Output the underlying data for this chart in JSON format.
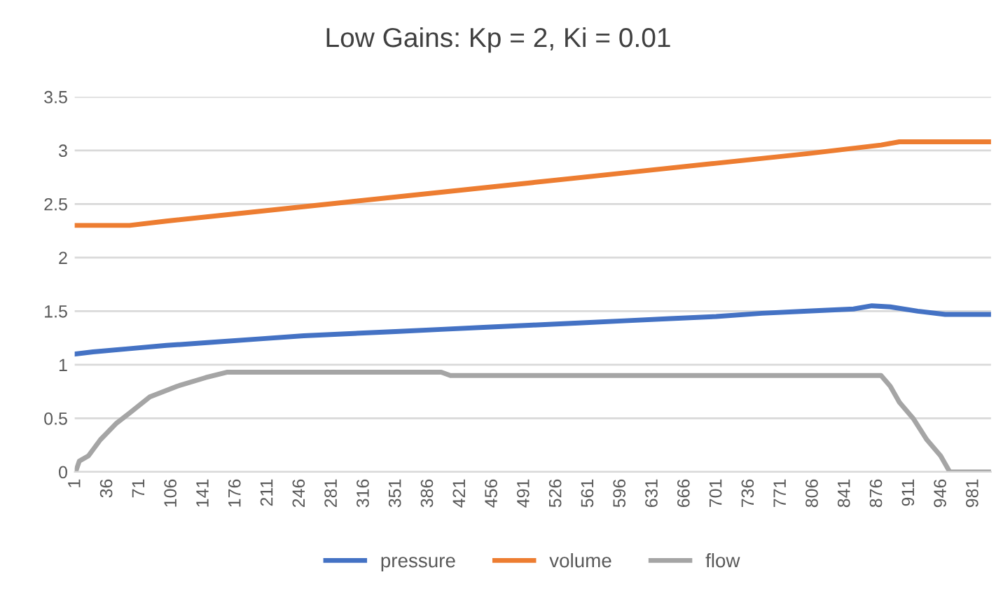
{
  "chart_data": {
    "type": "line",
    "title": "Low Gains: Kp = 2, Ki = 0.01",
    "xlim": [
      0,
      1000
    ],
    "xticks": [
      1,
      36,
      71,
      106,
      141,
      176,
      211,
      246,
      281,
      316,
      351,
      386,
      421,
      456,
      491,
      526,
      561,
      596,
      631,
      666,
      701,
      736,
      771,
      806,
      841,
      876,
      911,
      946,
      981
    ],
    "ylim": [
      0,
      3.5
    ],
    "yticks": [
      0,
      0.5,
      1,
      1.5,
      2,
      2.5,
      3,
      3.5
    ],
    "grid": "y",
    "legend": "bottom",
    "marker": "none",
    "line_style": "solid",
    "series": [
      {
        "name": "pressure",
        "color": "#4472c4",
        "x": [
          1,
          20,
          60,
          100,
          150,
          200,
          250,
          300,
          350,
          400,
          450,
          500,
          550,
          600,
          650,
          700,
          750,
          800,
          850,
          870,
          890,
          920,
          950,
          1000
        ],
        "values": [
          1.1,
          1.12,
          1.15,
          1.18,
          1.21,
          1.24,
          1.27,
          1.29,
          1.31,
          1.33,
          1.35,
          1.37,
          1.39,
          1.41,
          1.43,
          1.45,
          1.48,
          1.5,
          1.52,
          1.55,
          1.54,
          1.5,
          1.47,
          1.47
        ]
      },
      {
        "name": "volume",
        "color": "#ed7d31",
        "x": [
          1,
          60,
          100,
          200,
          300,
          400,
          500,
          600,
          700,
          800,
          880,
          900,
          1000
        ],
        "values": [
          2.3,
          2.3,
          2.34,
          2.43,
          2.52,
          2.61,
          2.7,
          2.79,
          2.88,
          2.97,
          3.05,
          3.08,
          3.08
        ]
      },
      {
        "name": "flow",
        "color": "#a5a5a5",
        "x": [
          1,
          5,
          15,
          28,
          45,
          60,
          82,
          112,
          143,
          166,
          400,
          410,
          880,
          890,
          900,
          915,
          930,
          945,
          955,
          1000
        ],
        "values": [
          0,
          0.1,
          0.15,
          0.3,
          0.45,
          0.55,
          0.7,
          0.8,
          0.88,
          0.93,
          0.93,
          0.9,
          0.9,
          0.8,
          0.65,
          0.5,
          0.3,
          0.15,
          0,
          0
        ]
      }
    ]
  }
}
